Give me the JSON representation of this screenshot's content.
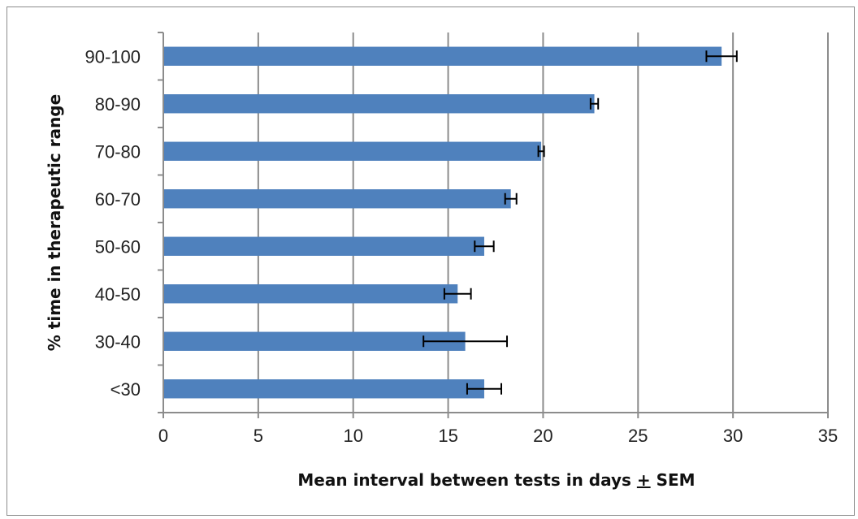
{
  "chart_data": {
    "type": "bar",
    "orientation": "horizontal",
    "title": "",
    "xlabel": "Mean interval between tests in days ± SEM",
    "ylabel": "% time in therapeutic range",
    "categories": [
      "<30",
      "30-40",
      "40-50",
      "50-60",
      "60-70",
      "70-80",
      "80-90",
      "90-100"
    ],
    "values": [
      16.9,
      15.9,
      15.5,
      16.9,
      18.3,
      19.9,
      22.7,
      29.4
    ],
    "errors": [
      0.9,
      2.2,
      0.7,
      0.5,
      0.3,
      0.15,
      0.2,
      0.8
    ],
    "xlim": [
      0,
      35
    ],
    "xticks": [
      0,
      5,
      10,
      15,
      20,
      25,
      30,
      35
    ],
    "grid": true,
    "bar_color": "#4f81bd",
    "error_color": "#000000",
    "grid_color": "#8c8c8c"
  }
}
